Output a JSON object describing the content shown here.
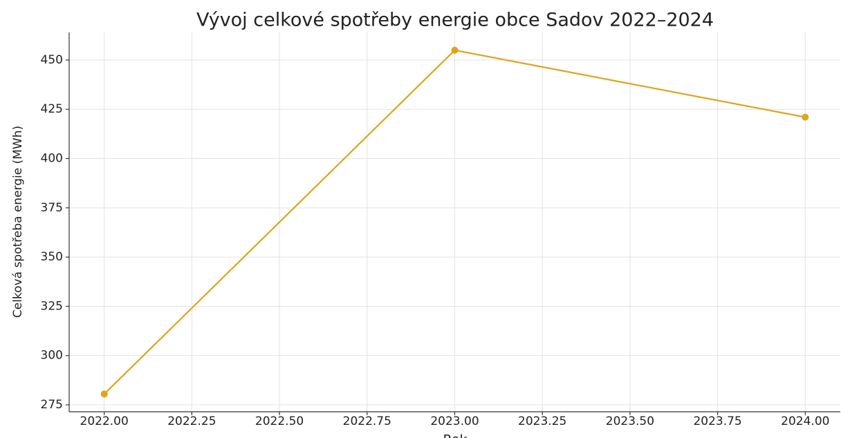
{
  "chart_data": {
    "type": "line",
    "title": "Vývoj celkové spotřeby energie obce Sadov 2022–2024",
    "x_label": "Rok",
    "y_label": "Celková spotřeba energie (MWh)",
    "x": [
      2022,
      2023,
      2024
    ],
    "series": [
      {
        "name": "Celková spotřeba energie",
        "color": "#e0a31a",
        "values": [
          280.5,
          455,
          421
        ]
      }
    ],
    "xlim": [
      2021.9,
      2024.1
    ],
    "ylim": [
      271.5,
      464
    ],
    "xticks": [
      {
        "value": 2022.0,
        "label": "2022.00"
      },
      {
        "value": 2022.25,
        "label": "2022.25"
      },
      {
        "value": 2022.5,
        "label": "2022.50"
      },
      {
        "value": 2022.75,
        "label": "2022.75"
      },
      {
        "value": 2023.0,
        "label": "2023.00"
      },
      {
        "value": 2023.25,
        "label": "2023.25"
      },
      {
        "value": 2023.5,
        "label": "2023.50"
      },
      {
        "value": 2023.75,
        "label": "2023.75"
      },
      {
        "value": 2024.0,
        "label": "2024.00"
      }
    ],
    "yticks": [
      275,
      300,
      325,
      350,
      375,
      400,
      425,
      450
    ],
    "grid": true
  }
}
